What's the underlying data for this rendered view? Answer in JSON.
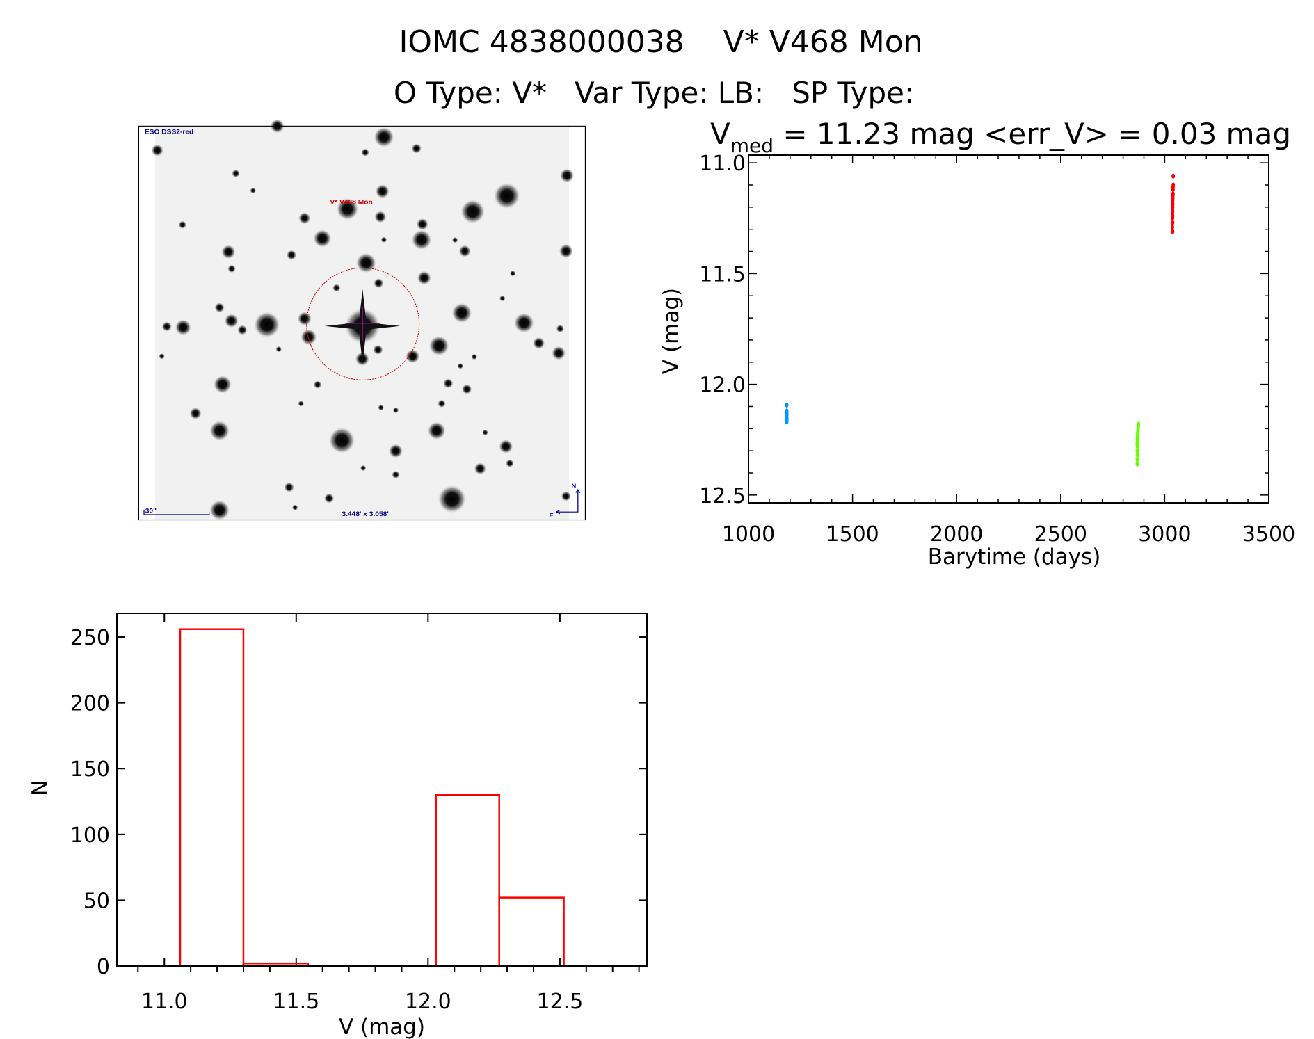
{
  "header": {
    "title": "IOMC 4838000038    V* V468 Mon",
    "types": "O Type: V*   Var Type: LB:   SP Type:",
    "vmed_symbol": "V",
    "vmed_subscript": "med",
    "vmed_rest": " = 11.23 mag <err_V> = 0.03 mag"
  },
  "finder_image": {
    "survey_label": "ESO DSS2-red",
    "target_label": "V* V468 Mon",
    "field_size": "3.448' x 3.058'",
    "scale_label": "30\"",
    "north_label": "N",
    "east_label": "E",
    "colors": {
      "target": "#cc0000",
      "annotations": "#00008b"
    }
  },
  "chart_data": [
    {
      "type": "scatter",
      "xlabel": "Barytime (days)",
      "ylabel": "V (mag)",
      "xlim": [
        1000,
        3500
      ],
      "ylim": [
        12.535,
        10.965
      ],
      "y_inverted": true,
      "x_ticks": [
        "1000",
        "1500",
        "2000",
        "2500",
        "3000",
        "3500"
      ],
      "y_ticks": [
        "11.0",
        "11.5",
        "12.0",
        "12.5"
      ],
      "grid": false,
      "series": [
        {
          "color": "#0096ff",
          "points": [
            [
              1184,
              12.094
            ],
            [
              1184,
              12.12
            ],
            [
              1184,
              12.13
            ],
            [
              1184,
              12.135
            ],
            [
              1184,
              12.14
            ],
            [
              1184,
              12.15
            ],
            [
              1184,
              12.155
            ],
            [
              1184,
              12.16
            ],
            [
              1184,
              12.17
            ]
          ]
        },
        {
          "color": "#66ff00",
          "points": [
            [
              2874,
              12.18
            ],
            [
              2873,
              12.19
            ],
            [
              2872,
              12.2
            ],
            [
              2871,
              12.21
            ],
            [
              2870,
              12.22
            ],
            [
              2869,
              12.23
            ],
            [
              2870,
              12.24
            ],
            [
              2868,
              12.25
            ],
            [
              2869,
              12.26
            ],
            [
              2868,
              12.27
            ],
            [
              2869,
              12.28
            ],
            [
              2868,
              12.3
            ],
            [
              2869,
              12.32
            ],
            [
              2868,
              12.34
            ],
            [
              2868,
              12.36
            ]
          ]
        },
        {
          "color": "#ff0000",
          "points": [
            [
              3041,
              11.06
            ],
            [
              3041,
              11.1
            ],
            [
              3040,
              11.11
            ],
            [
              3040,
              11.12
            ],
            [
              3040,
              11.14
            ],
            [
              3039,
              11.15
            ],
            [
              3039,
              11.16
            ],
            [
              3038,
              11.17
            ],
            [
              3038,
              11.18
            ],
            [
              3038,
              11.19
            ],
            [
              3038,
              11.2
            ],
            [
              3037,
              11.21
            ],
            [
              3038,
              11.22
            ],
            [
              3037,
              11.23
            ],
            [
              3038,
              11.24
            ],
            [
              3037,
              11.25
            ],
            [
              3038,
              11.27
            ],
            [
              3037,
              11.29
            ],
            [
              3038,
              11.31
            ]
          ]
        }
      ]
    },
    {
      "type": "bar",
      "subtype": "histogram",
      "xlabel": "V (mag)",
      "ylabel": "N",
      "xlim": [
        10.82,
        12.83
      ],
      "ylim": [
        0,
        268
      ],
      "x_ticks": [
        "11.0",
        "11.5",
        "12.0",
        "12.5"
      ],
      "y_ticks": [
        "0",
        "50",
        "100",
        "150",
        "200",
        "250"
      ],
      "grid": false,
      "color": "#ff0000",
      "bin_edges": [
        11.06,
        11.3,
        11.545,
        11.79,
        12.03,
        12.27,
        12.515
      ],
      "values": [
        256,
        2,
        0,
        0,
        130,
        52
      ]
    }
  ]
}
